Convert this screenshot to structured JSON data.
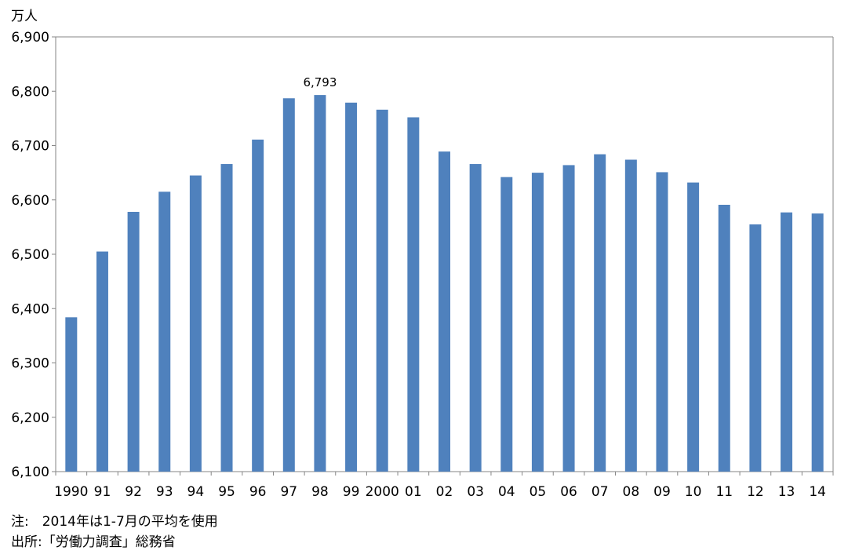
{
  "chart_data": {
    "type": "bar",
    "unit_label": "万人",
    "categories": [
      "1990",
      "91",
      "92",
      "93",
      "94",
      "95",
      "96",
      "97",
      "98",
      "99",
      "2000",
      "01",
      "02",
      "03",
      "04",
      "05",
      "06",
      "07",
      "08",
      "09",
      "10",
      "11",
      "12",
      "13",
      "14"
    ],
    "values": [
      6384,
      6505,
      6578,
      6615,
      6645,
      6666,
      6711,
      6787,
      6793,
      6779,
      6766,
      6752,
      6689,
      6666,
      6642,
      6650,
      6664,
      6684,
      6674,
      6651,
      6632,
      6591,
      6555,
      6577,
      6575
    ],
    "ylim": [
      6100,
      6900
    ],
    "yticks": [
      6100,
      6200,
      6300,
      6400,
      6500,
      6600,
      6700,
      6800,
      6900
    ],
    "ytick_labels": [
      "6,100",
      "6,200",
      "6,300",
      "6,400",
      "6,500",
      "6,600",
      "6,700",
      "6,800",
      "6,900"
    ],
    "annotations": [
      {
        "category": "98",
        "text": "6,793"
      }
    ],
    "bar_color": "#4f81bd",
    "grid": false
  },
  "notes": {
    "line1": "注:　2014年は1-7月の平均を使用",
    "line2": "出所:「労働力調査」総務省"
  }
}
